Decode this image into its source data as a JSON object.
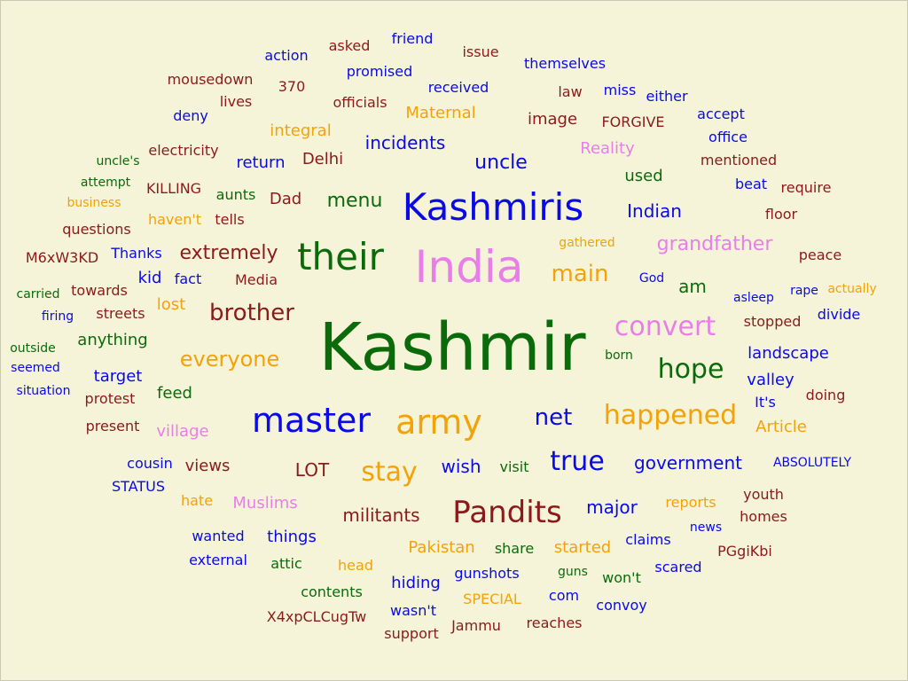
{
  "palette": {
    "background": "#f5f4d9",
    "blue": "#0a0ae6",
    "green": "#0b6b0b",
    "brown": "#8b1a1a",
    "orange": "#f2a20a",
    "pink": "#e87ee8"
  },
  "words": [
    {
      "text": "Kashmir",
      "color": "green"
    },
    {
      "text": "India",
      "color": "pink"
    },
    {
      "text": "Kashmiris",
      "color": "blue"
    },
    {
      "text": "their",
      "color": "green"
    },
    {
      "text": "master",
      "color": "blue"
    },
    {
      "text": "army",
      "color": "orange"
    },
    {
      "text": "Pandits",
      "color": "brown"
    },
    {
      "text": "happened",
      "color": "orange"
    },
    {
      "text": "convert",
      "color": "pink"
    },
    {
      "text": "hope",
      "color": "green"
    },
    {
      "text": "true",
      "color": "blue"
    },
    {
      "text": "stay",
      "color": "orange"
    },
    {
      "text": "net",
      "color": "blue"
    },
    {
      "text": "main",
      "color": "orange"
    },
    {
      "text": "brother",
      "color": "brown"
    },
    {
      "text": "everyone",
      "color": "orange"
    },
    {
      "text": "extremely",
      "color": "brown"
    },
    {
      "text": "grandfather",
      "color": "pink"
    },
    {
      "text": "menu",
      "color": "green"
    },
    {
      "text": "uncle",
      "color": "blue"
    },
    {
      "text": "incidents",
      "color": "blue"
    },
    {
      "text": "Indian",
      "color": "blue"
    },
    {
      "text": "government",
      "color": "blue"
    },
    {
      "text": "militants",
      "color": "brown"
    },
    {
      "text": "major",
      "color": "blue"
    },
    {
      "text": "wish",
      "color": "blue"
    },
    {
      "text": "LOT",
      "color": "brown"
    },
    {
      "text": "am",
      "color": "green"
    },
    {
      "text": "Maternal",
      "color": "orange"
    },
    {
      "text": "image",
      "color": "brown"
    },
    {
      "text": "Reality",
      "color": "pink"
    },
    {
      "text": "integral",
      "color": "orange"
    },
    {
      "text": "Delhi",
      "color": "brown"
    },
    {
      "text": "return",
      "color": "blue"
    },
    {
      "text": "Dad",
      "color": "brown"
    },
    {
      "text": "used",
      "color": "green"
    },
    {
      "text": "Pakistan",
      "color": "orange"
    },
    {
      "text": "Muslims",
      "color": "pink"
    },
    {
      "text": "village",
      "color": "pink"
    },
    {
      "text": "feed",
      "color": "green"
    },
    {
      "text": "landscape",
      "color": "blue"
    },
    {
      "text": "valley",
      "color": "blue"
    },
    {
      "text": "anything",
      "color": "green"
    },
    {
      "text": "target",
      "color": "blue"
    },
    {
      "text": "lost",
      "color": "orange"
    },
    {
      "text": "kid",
      "color": "blue"
    },
    {
      "text": "fact",
      "color": "blue"
    },
    {
      "text": "Media",
      "color": "brown"
    },
    {
      "text": "aunts",
      "color": "green"
    },
    {
      "text": "haven't",
      "color": "orange"
    },
    {
      "text": "tells",
      "color": "brown"
    },
    {
      "text": "views",
      "color": "brown"
    },
    {
      "text": "hate",
      "color": "orange"
    },
    {
      "text": "wanted",
      "color": "blue"
    },
    {
      "text": "things",
      "color": "blue"
    },
    {
      "text": "attic",
      "color": "green"
    },
    {
      "text": "head",
      "color": "orange"
    },
    {
      "text": "share",
      "color": "green"
    },
    {
      "text": "started",
      "color": "orange"
    },
    {
      "text": "claims",
      "color": "blue"
    },
    {
      "text": "won't",
      "color": "green"
    },
    {
      "text": "hiding",
      "color": "blue"
    },
    {
      "text": "gunshots",
      "color": "blue"
    },
    {
      "text": "contents",
      "color": "green"
    },
    {
      "text": "SPECIAL",
      "color": "orange"
    },
    {
      "text": "com",
      "color": "blue"
    },
    {
      "text": "convoy",
      "color": "blue"
    },
    {
      "text": "wasn't",
      "color": "blue"
    },
    {
      "text": "support",
      "color": "brown"
    },
    {
      "text": "Jammu",
      "color": "brown"
    },
    {
      "text": "reaches",
      "color": "brown"
    },
    {
      "text": "X4xpCLCugTw",
      "color": "brown"
    },
    {
      "text": "scared",
      "color": "blue"
    },
    {
      "text": "PGgiKbi",
      "color": "brown"
    },
    {
      "text": "news",
      "color": "blue"
    },
    {
      "text": "homes",
      "color": "brown"
    },
    {
      "text": "youth",
      "color": "brown"
    },
    {
      "text": "reports",
      "color": "orange"
    },
    {
      "text": "ABSOLUTELY",
      "color": "blue"
    },
    {
      "text": "visit",
      "color": "green"
    },
    {
      "text": "Article",
      "color": "orange"
    },
    {
      "text": "It's",
      "color": "blue"
    },
    {
      "text": "doing",
      "color": "brown"
    },
    {
      "text": "born",
      "color": "green"
    },
    {
      "text": "stopped",
      "color": "brown"
    },
    {
      "text": "divide",
      "color": "blue"
    },
    {
      "text": "asleep",
      "color": "blue"
    },
    {
      "text": "rape",
      "color": "blue"
    },
    {
      "text": "actually",
      "color": "orange"
    },
    {
      "text": "peace",
      "color": "brown"
    },
    {
      "text": "God",
      "color": "blue"
    },
    {
      "text": "gathered",
      "color": "orange"
    },
    {
      "text": "floor",
      "color": "brown"
    },
    {
      "text": "beat",
      "color": "blue"
    },
    {
      "text": "require",
      "color": "brown"
    },
    {
      "text": "mentioned",
      "color": "brown"
    },
    {
      "text": "office",
      "color": "blue"
    },
    {
      "text": "accept",
      "color": "blue"
    },
    {
      "text": "FORGIVE",
      "color": "brown"
    },
    {
      "text": "law",
      "color": "brown"
    },
    {
      "text": "miss",
      "color": "blue"
    },
    {
      "text": "either",
      "color": "blue"
    },
    {
      "text": "themselves",
      "color": "blue"
    },
    {
      "text": "issue",
      "color": "brown"
    },
    {
      "text": "received",
      "color": "blue"
    },
    {
      "text": "friend",
      "color": "blue"
    },
    {
      "text": "asked",
      "color": "brown"
    },
    {
      "text": "promised",
      "color": "blue"
    },
    {
      "text": "officials",
      "color": "brown"
    },
    {
      "text": "action",
      "color": "blue"
    },
    {
      "text": "370",
      "color": "brown"
    },
    {
      "text": "mousedown",
      "color": "brown"
    },
    {
      "text": "lives",
      "color": "brown"
    },
    {
      "text": "deny",
      "color": "blue"
    },
    {
      "text": "electricity",
      "color": "brown"
    },
    {
      "text": "uncle's",
      "color": "green"
    },
    {
      "text": "attempt",
      "color": "green"
    },
    {
      "text": "KILLING",
      "color": "brown"
    },
    {
      "text": "business",
      "color": "orange"
    },
    {
      "text": "questions",
      "color": "brown"
    },
    {
      "text": "M6xW3KD",
      "color": "brown"
    },
    {
      "text": "Thanks",
      "color": "blue"
    },
    {
      "text": "carried",
      "color": "green"
    },
    {
      "text": "towards",
      "color": "brown"
    },
    {
      "text": "firing",
      "color": "blue"
    },
    {
      "text": "streets",
      "color": "brown"
    },
    {
      "text": "outside",
      "color": "green"
    },
    {
      "text": "seemed",
      "color": "blue"
    },
    {
      "text": "situation",
      "color": "blue"
    },
    {
      "text": "protest",
      "color": "brown"
    },
    {
      "text": "present",
      "color": "brown"
    },
    {
      "text": "cousin",
      "color": "blue"
    },
    {
      "text": "STATUS",
      "color": "blue"
    },
    {
      "text": "external",
      "color": "blue"
    },
    {
      "text": "guns",
      "color": "green"
    }
  ]
}
